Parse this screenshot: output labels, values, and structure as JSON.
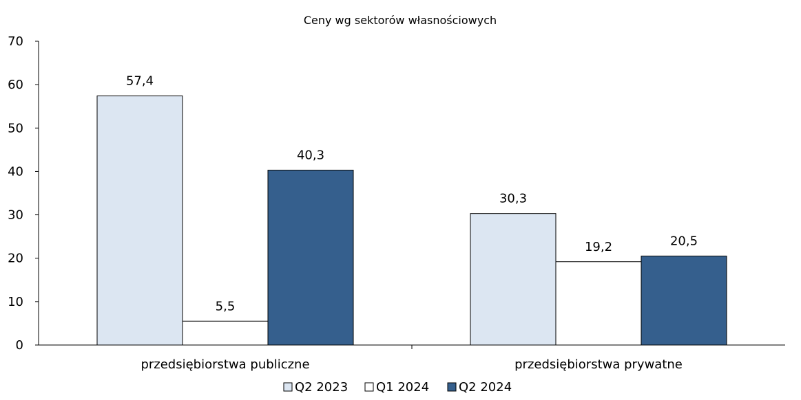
{
  "chart_data": {
    "type": "bar",
    "title": "Ceny wg sektorów własnościowych",
    "xlabel": "",
    "ylabel": "",
    "categories": [
      "przedsiębiorstwa publiczne",
      "przedsiębiorstwa prywatne"
    ],
    "series": [
      {
        "name": "Q2 2023",
        "values": [
          57.4,
          30.3
        ],
        "labels": [
          "57,4",
          "30,3"
        ],
        "color": "#dce6f2"
      },
      {
        "name": "Q1 2024",
        "values": [
          5.5,
          19.2
        ],
        "labels": [
          "5,5",
          "19,2"
        ],
        "color": "#ffffff"
      },
      {
        "name": "Q2 2024",
        "values": [
          40.3,
          20.5
        ],
        "labels": [
          "40,3",
          "20,5"
        ],
        "color": "#355f8d"
      }
    ],
    "ylim": [
      0,
      70
    ],
    "yticks": [
      0,
      10,
      20,
      30,
      40,
      50,
      60,
      70
    ],
    "grid": false,
    "legend_position": "bottom"
  }
}
